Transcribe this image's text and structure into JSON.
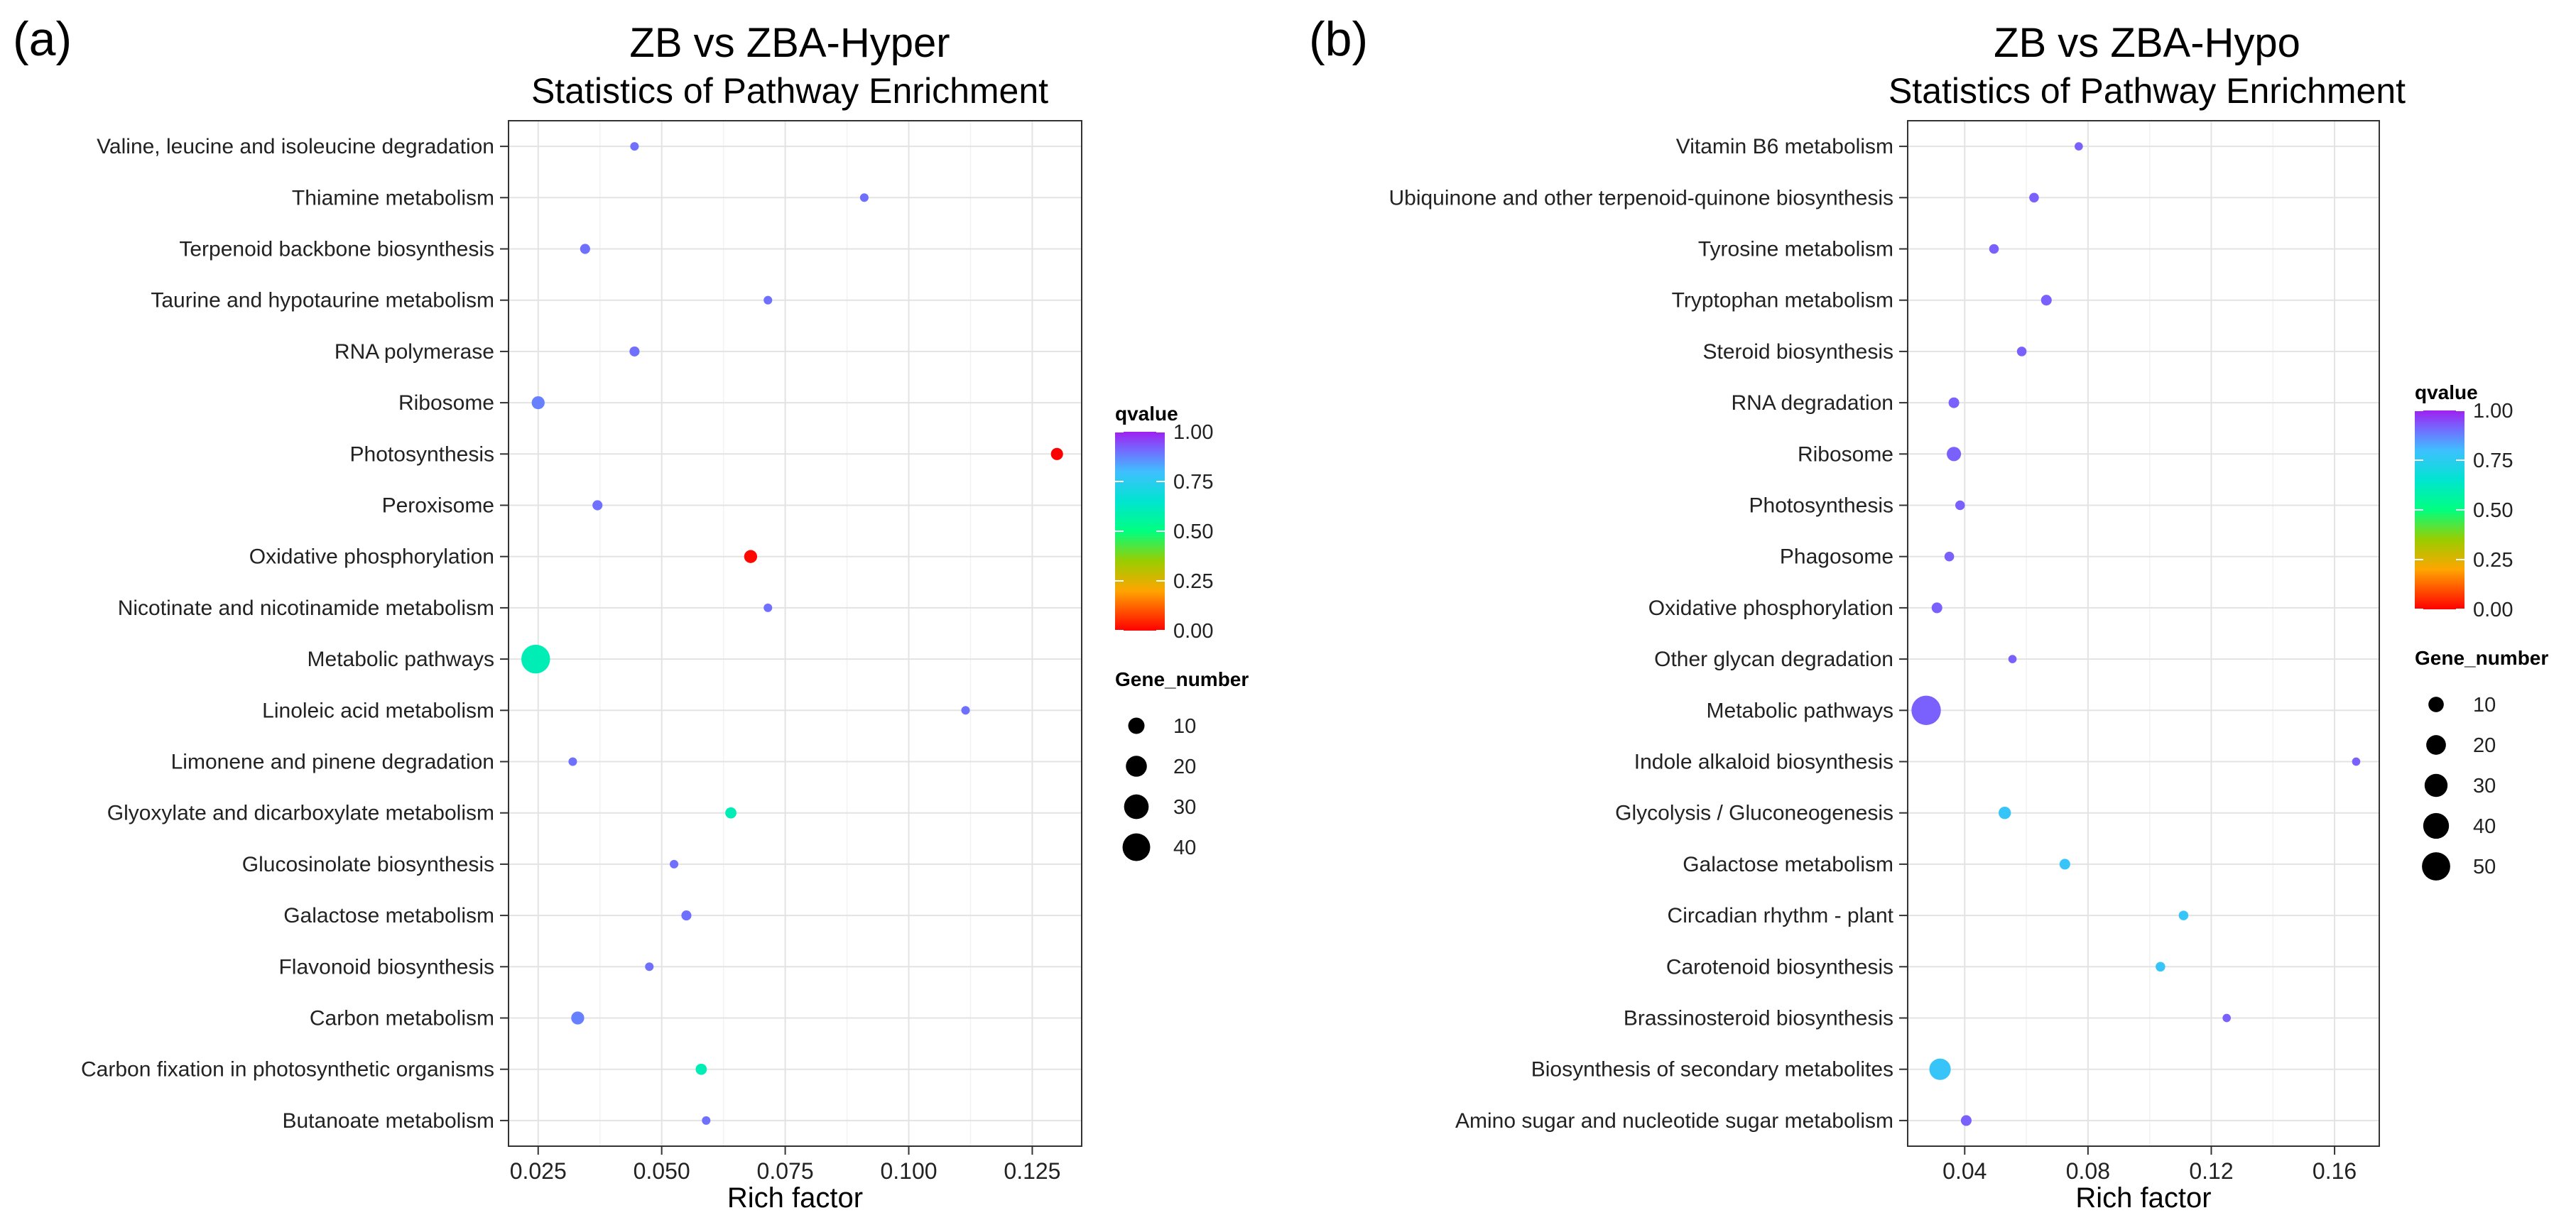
{
  "chart_data": [
    {
      "type": "scatter",
      "panel_label": "(a)",
      "title": "ZB vs ZBA-Hyper",
      "subtitle": "Statistics of Pathway Enrichment",
      "xlabel": "Rich factor",
      "xlim": [
        0.019,
        0.135
      ],
      "xticks": [
        0.025,
        0.05,
        0.075,
        0.1,
        0.125
      ],
      "xtick_labels": [
        "0.025",
        "0.050",
        "0.075",
        "0.100",
        "0.125"
      ],
      "grid": true,
      "color_legend": {
        "title": "qvalue",
        "ticks": [
          "0.00",
          "0.25",
          "0.50",
          "0.75",
          "1.00"
        ]
      },
      "size_legend": {
        "title": "Gene_number",
        "values": [
          10,
          20,
          30,
          40
        ],
        "labels": [
          "10",
          "20",
          "30",
          "40"
        ],
        "max": 48
      },
      "categories": [
        "Valine, leucine and isoleucine degradation",
        "Thiamine metabolism",
        "Terpenoid backbone biosynthesis",
        "Taurine and hypotaurine metabolism",
        "RNA polymerase",
        "Ribosome",
        "Photosynthesis",
        "Peroxisome",
        "Oxidative phosphorylation",
        "Nicotinate and nicotinamide metabolism",
        "Metabolic pathways",
        "Linoleic acid metabolism",
        "Limonene and pinene degradation",
        "Glyoxylate and dicarboxylate metabolism",
        "Glucosinolate biosynthesis",
        "Galactose metabolism",
        "Flavonoid biosynthesis",
        "Carbon metabolism",
        "Carbon fixation in photosynthetic organisms",
        "Butanoate metabolism"
      ],
      "points": [
        {
          "pathway": "Valine, leucine and isoleucine degradation",
          "rich_factor": 0.0445,
          "qvalue": 0.9,
          "gene_number": 1
        },
        {
          "pathway": "Thiamine metabolism",
          "rich_factor": 0.091,
          "qvalue": 0.9,
          "gene_number": 1
        },
        {
          "pathway": "Terpenoid backbone biosynthesis",
          "rich_factor": 0.0345,
          "qvalue": 0.9,
          "gene_number": 2
        },
        {
          "pathway": "Taurine and hypotaurine metabolism",
          "rich_factor": 0.0715,
          "qvalue": 0.9,
          "gene_number": 1
        },
        {
          "pathway": "RNA polymerase",
          "rich_factor": 0.0445,
          "qvalue": 0.9,
          "gene_number": 2
        },
        {
          "pathway": "Ribosome",
          "rich_factor": 0.025,
          "qvalue": 0.88,
          "gene_number": 5
        },
        {
          "pathway": "Photosynthesis",
          "rich_factor": 0.13,
          "qvalue": 0.0,
          "gene_number": 4
        },
        {
          "pathway": "Peroxisome",
          "rich_factor": 0.037,
          "qvalue": 0.9,
          "gene_number": 2
        },
        {
          "pathway": "Oxidative phosphorylation",
          "rich_factor": 0.068,
          "qvalue": 0.01,
          "gene_number": 5
        },
        {
          "pathway": "Nicotinate and nicotinamide metabolism",
          "rich_factor": 0.0715,
          "qvalue": 0.9,
          "gene_number": 1
        },
        {
          "pathway": "Metabolic pathways",
          "rich_factor": 0.0245,
          "qvalue": 0.6,
          "gene_number": 44
        },
        {
          "pathway": "Linoleic acid metabolism",
          "rich_factor": 0.1115,
          "qvalue": 0.9,
          "gene_number": 1
        },
        {
          "pathway": "Limonene and pinene degradation",
          "rich_factor": 0.032,
          "qvalue": 0.9,
          "gene_number": 1
        },
        {
          "pathway": "Glyoxylate and dicarboxylate metabolism",
          "rich_factor": 0.064,
          "qvalue": 0.6,
          "gene_number": 3
        },
        {
          "pathway": "Glucosinolate biosynthesis",
          "rich_factor": 0.0525,
          "qvalue": 0.9,
          "gene_number": 1
        },
        {
          "pathway": "Galactose metabolism",
          "rich_factor": 0.055,
          "qvalue": 0.9,
          "gene_number": 2
        },
        {
          "pathway": "Flavonoid biosynthesis",
          "rich_factor": 0.0475,
          "qvalue": 0.9,
          "gene_number": 1
        },
        {
          "pathway": "Carbon metabolism",
          "rich_factor": 0.033,
          "qvalue": 0.88,
          "gene_number": 5
        },
        {
          "pathway": "Carbon fixation in photosynthetic organisms",
          "rich_factor": 0.058,
          "qvalue": 0.6,
          "gene_number": 3
        },
        {
          "pathway": "Butanoate metabolism",
          "rich_factor": 0.059,
          "qvalue": 0.9,
          "gene_number": 1
        }
      ]
    },
    {
      "type": "scatter",
      "panel_label": "(b)",
      "title": "ZB vs ZBA-Hypo",
      "subtitle": "Statistics of Pathway Enrichment",
      "xlabel": "Rich factor",
      "xlim": [
        0.0215,
        0.1745
      ],
      "xticks": [
        0.04,
        0.08,
        0.12,
        0.16
      ],
      "xtick_labels": [
        "0.04",
        "0.08",
        "0.12",
        "0.16"
      ],
      "grid": true,
      "color_legend": {
        "title": "qvalue",
        "ticks": [
          "0.00",
          "0.25",
          "0.50",
          "0.75",
          "1.00"
        ]
      },
      "size_legend": {
        "title": "Gene_number",
        "values": [
          10,
          20,
          30,
          40,
          50
        ],
        "labels": [
          "10",
          "20",
          "30",
          "40",
          "50"
        ],
        "max": 57
      },
      "categories": [
        "Vitamin B6 metabolism",
        "Ubiquinone and other terpenoid-quinone biosynthesis",
        "Tyrosine metabolism",
        "Tryptophan metabolism",
        "Steroid biosynthesis",
        "RNA degradation",
        "Ribosome",
        "Photosynthesis",
        "Phagosome",
        "Oxidative phosphorylation",
        "Other glycan degradation",
        "Metabolic pathways",
        "Indole alkaloid biosynthesis",
        "Glycolysis / Gluconeogenesis",
        "Galactose metabolism",
        "Circadian rhythm - plant",
        "Carotenoid biosynthesis",
        "Brassinosteroid biosynthesis",
        "Biosynthesis of secondary metabolites",
        "Amino sugar and nucleotide sugar metabolism"
      ],
      "points": [
        {
          "pathway": "Vitamin B6 metabolism",
          "rich_factor": 0.077,
          "qvalue": 0.92,
          "gene_number": 1
        },
        {
          "pathway": "Ubiquinone and other terpenoid-quinone biosynthesis",
          "rich_factor": 0.0625,
          "qvalue": 0.92,
          "gene_number": 2
        },
        {
          "pathway": "Tyrosine metabolism",
          "rich_factor": 0.0495,
          "qvalue": 0.92,
          "gene_number": 2
        },
        {
          "pathway": "Tryptophan metabolism",
          "rich_factor": 0.0665,
          "qvalue": 0.92,
          "gene_number": 3
        },
        {
          "pathway": "Steroid biosynthesis",
          "rich_factor": 0.0585,
          "qvalue": 0.92,
          "gene_number": 2
        },
        {
          "pathway": "RNA degradation",
          "rich_factor": 0.0365,
          "qvalue": 0.92,
          "gene_number": 3
        },
        {
          "pathway": "Ribosome",
          "rich_factor": 0.0365,
          "qvalue": 0.92,
          "gene_number": 8
        },
        {
          "pathway": "Photosynthesis",
          "rich_factor": 0.0385,
          "qvalue": 0.92,
          "gene_number": 2
        },
        {
          "pathway": "Phagosome",
          "rich_factor": 0.035,
          "qvalue": 0.92,
          "gene_number": 2
        },
        {
          "pathway": "Oxidative phosphorylation",
          "rich_factor": 0.031,
          "qvalue": 0.92,
          "gene_number": 3
        },
        {
          "pathway": "Other glycan degradation",
          "rich_factor": 0.0555,
          "qvalue": 0.92,
          "gene_number": 1
        },
        {
          "pathway": "Metabolic pathways",
          "rich_factor": 0.0275,
          "qvalue": 0.92,
          "gene_number": 55
        },
        {
          "pathway": "Indole alkaloid biosynthesis",
          "rich_factor": 0.167,
          "qvalue": 0.92,
          "gene_number": 1
        },
        {
          "pathway": "Glycolysis / Gluconeogenesis",
          "rich_factor": 0.053,
          "qvalue": 0.78,
          "gene_number": 5
        },
        {
          "pathway": "Galactose metabolism",
          "rich_factor": 0.0725,
          "qvalue": 0.78,
          "gene_number": 3
        },
        {
          "pathway": "Circadian rhythm - plant",
          "rich_factor": 0.111,
          "qvalue": 0.78,
          "gene_number": 2
        },
        {
          "pathway": "Carotenoid biosynthesis",
          "rich_factor": 0.1035,
          "qvalue": 0.78,
          "gene_number": 2
        },
        {
          "pathway": "Brassinosteroid biosynthesis",
          "rich_factor": 0.125,
          "qvalue": 0.92,
          "gene_number": 1
        },
        {
          "pathway": "Biosynthesis of secondary metabolites",
          "rich_factor": 0.032,
          "qvalue": 0.78,
          "gene_number": 25
        },
        {
          "pathway": "Amino sugar and nucleotide sugar metabolism",
          "rich_factor": 0.0405,
          "qvalue": 0.92,
          "gene_number": 3
        }
      ]
    }
  ]
}
